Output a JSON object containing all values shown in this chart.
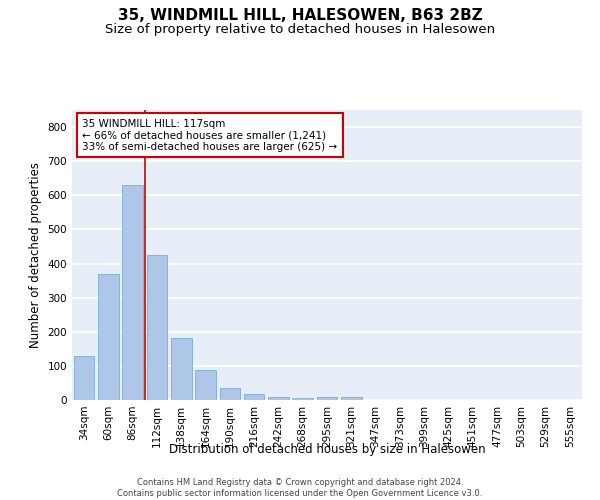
{
  "title_line1": "35, WINDMILL HILL, HALESOWEN, B63 2BZ",
  "title_line2": "Size of property relative to detached houses in Halesowen",
  "xlabel": "Distribution of detached houses by size in Halesowen",
  "ylabel": "Number of detached properties",
  "categories": [
    "34sqm",
    "60sqm",
    "86sqm",
    "112sqm",
    "138sqm",
    "164sqm",
    "190sqm",
    "216sqm",
    "242sqm",
    "268sqm",
    "295sqm",
    "321sqm",
    "347sqm",
    "373sqm",
    "399sqm",
    "425sqm",
    "451sqm",
    "477sqm",
    "503sqm",
    "529sqm",
    "555sqm"
  ],
  "values": [
    128,
    370,
    630,
    425,
    183,
    88,
    35,
    18,
    8,
    5,
    10,
    10,
    0,
    0,
    0,
    0,
    0,
    0,
    0,
    0,
    0
  ],
  "bar_color": "#aec6e8",
  "bar_edge_color": "#7aafd4",
  "annotation_text_line1": "35 WINDMILL HILL: 117sqm",
  "annotation_text_line2": "← 66% of detached houses are smaller (1,241)",
  "annotation_text_line3": "33% of semi-detached houses are larger (625) →",
  "annotation_box_color": "#ffffff",
  "annotation_box_edge_color": "#cc0000",
  "footer_line1": "Contains HM Land Registry data © Crown copyright and database right 2024.",
  "footer_line2": "Contains public sector information licensed under the Open Government Licence v3.0.",
  "ylim": [
    0,
    850
  ],
  "yticks": [
    0,
    100,
    200,
    300,
    400,
    500,
    600,
    700,
    800
  ],
  "background_color": "#e8eef8",
  "grid_color": "#ffffff",
  "title1_fontsize": 11,
  "title2_fontsize": 9.5,
  "axis_label_fontsize": 8.5,
  "tick_fontsize": 7.5,
  "footer_fontsize": 6.0,
  "annotation_fontsize": 7.5
}
